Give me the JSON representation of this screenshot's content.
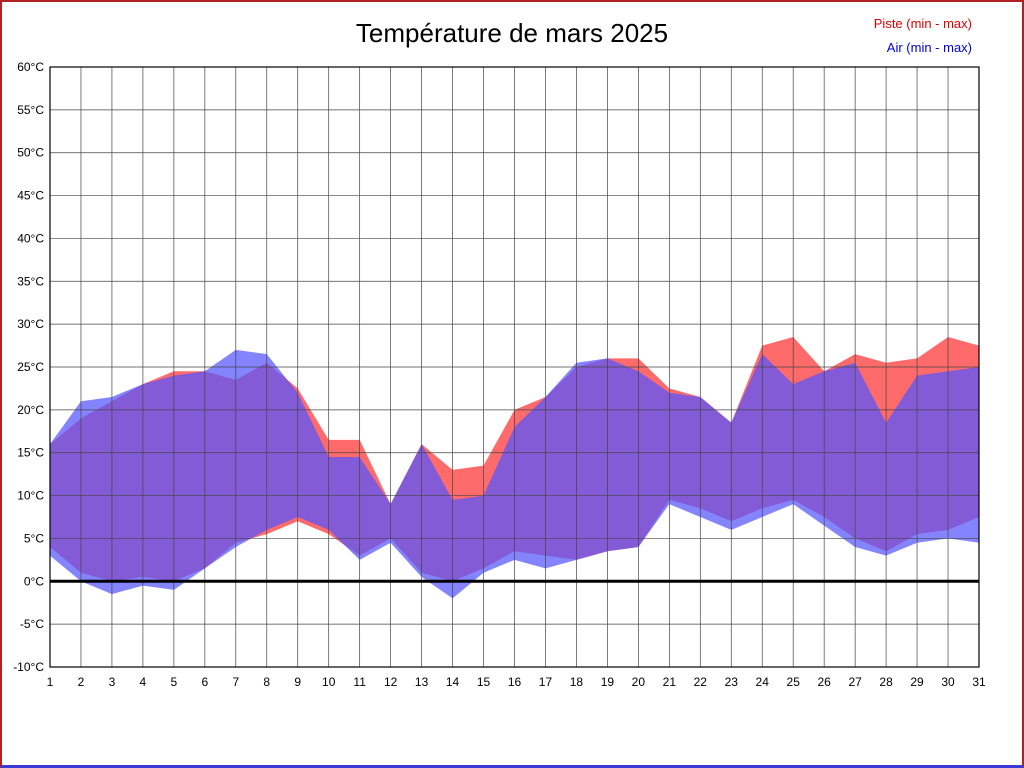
{
  "page": {
    "border_color": "#b22222",
    "bottom_bar_color": "#3a3ad6"
  },
  "title": "Température de mars 2025",
  "legend": [
    {
      "label": "Piste (min - max)",
      "color": "#e10000"
    },
    {
      "label": "Air (min - max)",
      "color": "#0000e1"
    }
  ],
  "chart_data": {
    "type": "area",
    "title": "Température de mars 2025",
    "xlabel": "",
    "ylabel": "°C",
    "ylim": [
      -10,
      60
    ],
    "ytick_step": 5,
    "ytick_suffix": "°C",
    "grid": true,
    "zero_line": true,
    "legend_position": "top-right",
    "x": [
      1,
      2,
      3,
      4,
      5,
      6,
      7,
      8,
      9,
      10,
      11,
      12,
      13,
      14,
      15,
      16,
      17,
      18,
      19,
      20,
      21,
      22,
      23,
      24,
      25,
      26,
      27,
      28,
      29,
      30,
      31
    ],
    "series": [
      {
        "name": "Piste (min - max)",
        "color": "#ff6b6b",
        "opacity": 1,
        "max": [
          16,
          19,
          21,
          23,
          24.5,
          24.5,
          23.5,
          25.5,
          22.5,
          16.5,
          16.5,
          9,
          16,
          13,
          13.5,
          20,
          21.5,
          25,
          26,
          26,
          22.5,
          21.5,
          18.5,
          27.5,
          28.5,
          24.5,
          26.5,
          25.5,
          26,
          28.5,
          27.5
        ],
        "min": [
          4,
          1,
          0,
          0.5,
          0,
          1.5,
          4.5,
          5.5,
          7,
          5.5,
          3,
          5,
          1,
          0,
          1.5,
          3.5,
          3,
          2.5,
          3.5,
          4,
          9.5,
          8.5,
          7,
          8.5,
          9.5,
          7.5,
          5,
          3.5,
          5.5,
          6,
          7.5
        ]
      },
      {
        "name": "Air (min - max)",
        "color": "#5555ff",
        "opacity": 0.72,
        "max": [
          16,
          21,
          21.5,
          23,
          24,
          24.5,
          27,
          26.5,
          22,
          14.5,
          14.5,
          9,
          16,
          9.5,
          10,
          18,
          21.5,
          25.5,
          26,
          24.5,
          22,
          21.5,
          18.5,
          26.5,
          23,
          24.5,
          25.5,
          18.5,
          24,
          24.5,
          25
        ],
        "min": [
          3,
          0,
          -1.5,
          -0.5,
          -1,
          1.5,
          4,
          6,
          7.5,
          6,
          2.5,
          4.5,
          0.5,
          -2,
          1,
          2.5,
          1.5,
          2.5,
          3.5,
          4,
          9,
          7.5,
          6,
          7.5,
          9,
          6.5,
          4,
          3,
          4.5,
          5,
          4.5
        ]
      }
    ]
  }
}
